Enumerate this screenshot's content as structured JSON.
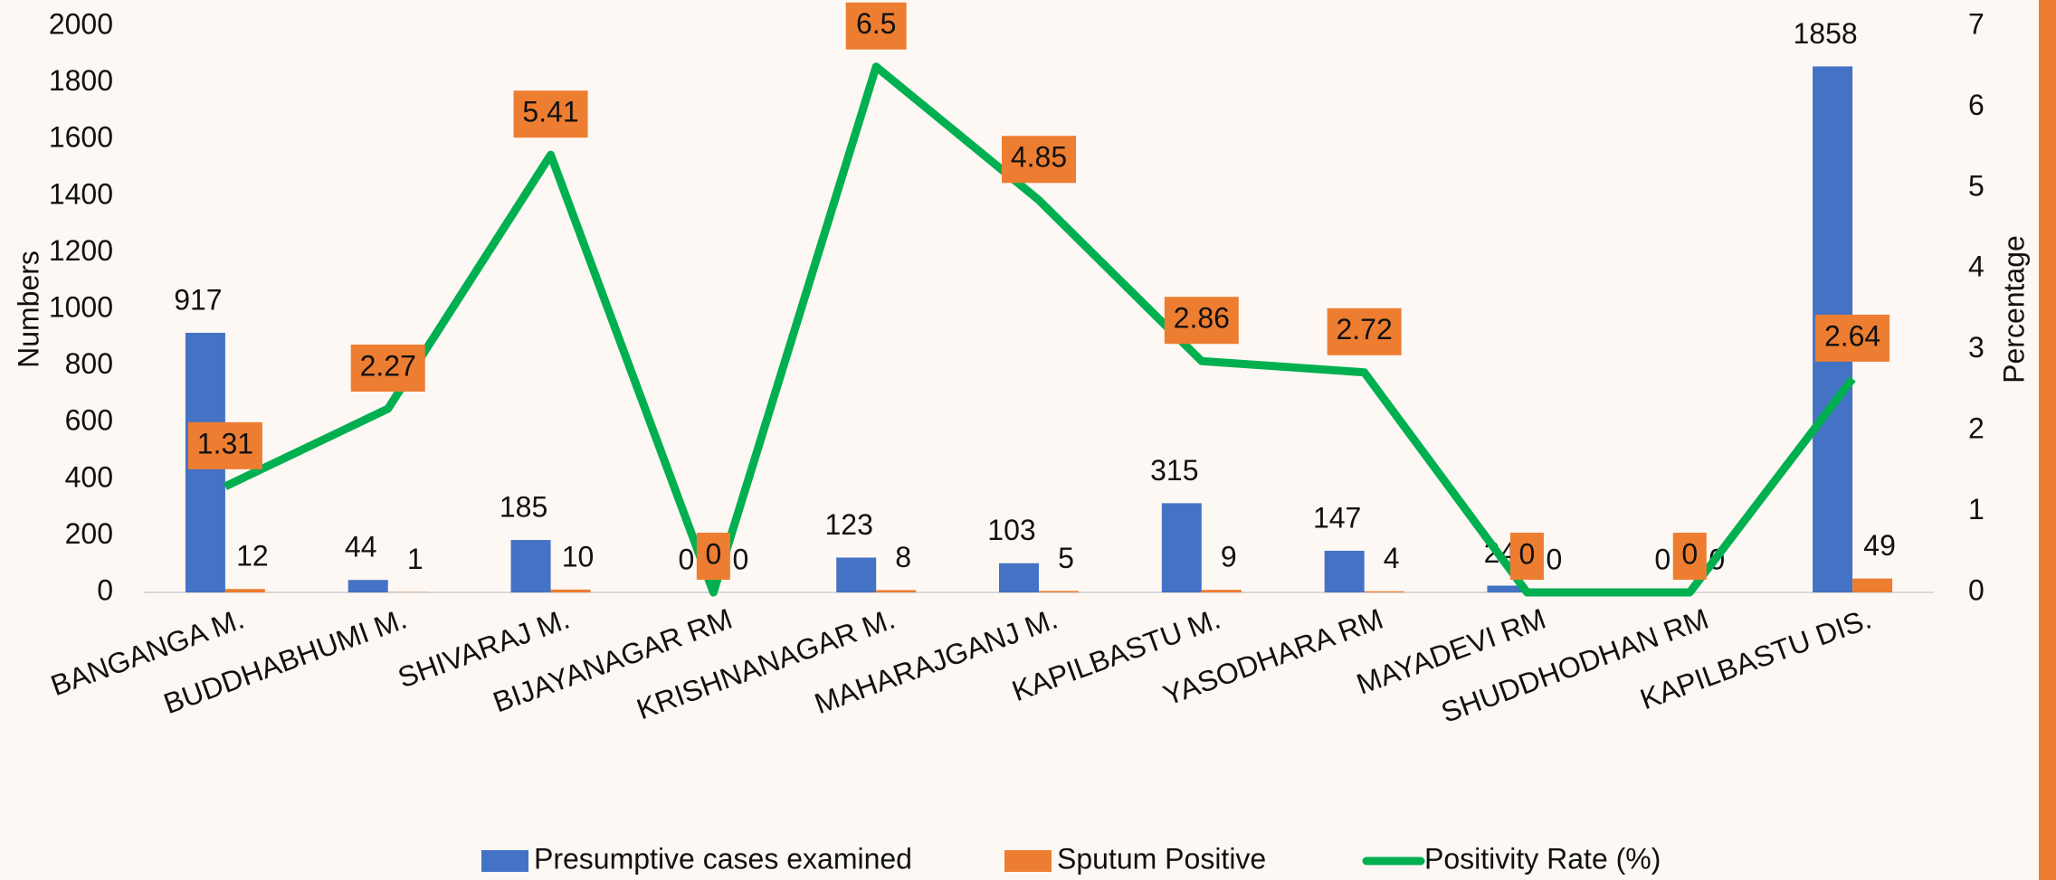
{
  "chart_data": {
    "type": "bar_line",
    "categories": [
      "BANGANGA M.",
      "BUDDHABHUMI M.",
      "SHIVARAJ M.",
      "BIJAYANAGAR RM",
      "KRISHNANAGAR M.",
      "MAHARAJGANJ M.",
      "KAPILBASTU M.",
      "YASODHARA RM",
      "MAYADEVI RM",
      "SHUDDHODHAN RM",
      "KAPILBASTU DIS."
    ],
    "series": [
      {
        "name": "Presumptive cases examined",
        "color": "#4472c4",
        "type": "bar",
        "values": [
          917,
          44,
          185,
          0,
          123,
          103,
          315,
          147,
          24,
          0,
          1858
        ]
      },
      {
        "name": "Sputum Positive",
        "color": "#ed7d31",
        "type": "bar",
        "values": [
          12,
          1,
          10,
          0,
          8,
          5,
          9,
          4,
          0,
          0,
          49
        ]
      },
      {
        "name": "Positivity Rate (%)",
        "color": "#00b050",
        "type": "line",
        "axis": "y2",
        "values": [
          1.31,
          2.27,
          5.41,
          0,
          6.5,
          4.85,
          2.86,
          2.72,
          0,
          0,
          2.64
        ]
      }
    ],
    "ylabel": "Numbers",
    "y2label": "Percentage",
    "ylim": [
      0,
      2000
    ],
    "yticks": [
      0,
      200,
      400,
      600,
      800,
      1000,
      1200,
      1400,
      1600,
      1800,
      2000
    ],
    "y2lim": [
      0,
      7
    ],
    "y2ticks": [
      0,
      1,
      2,
      3,
      4,
      5,
      6,
      7
    ]
  }
}
